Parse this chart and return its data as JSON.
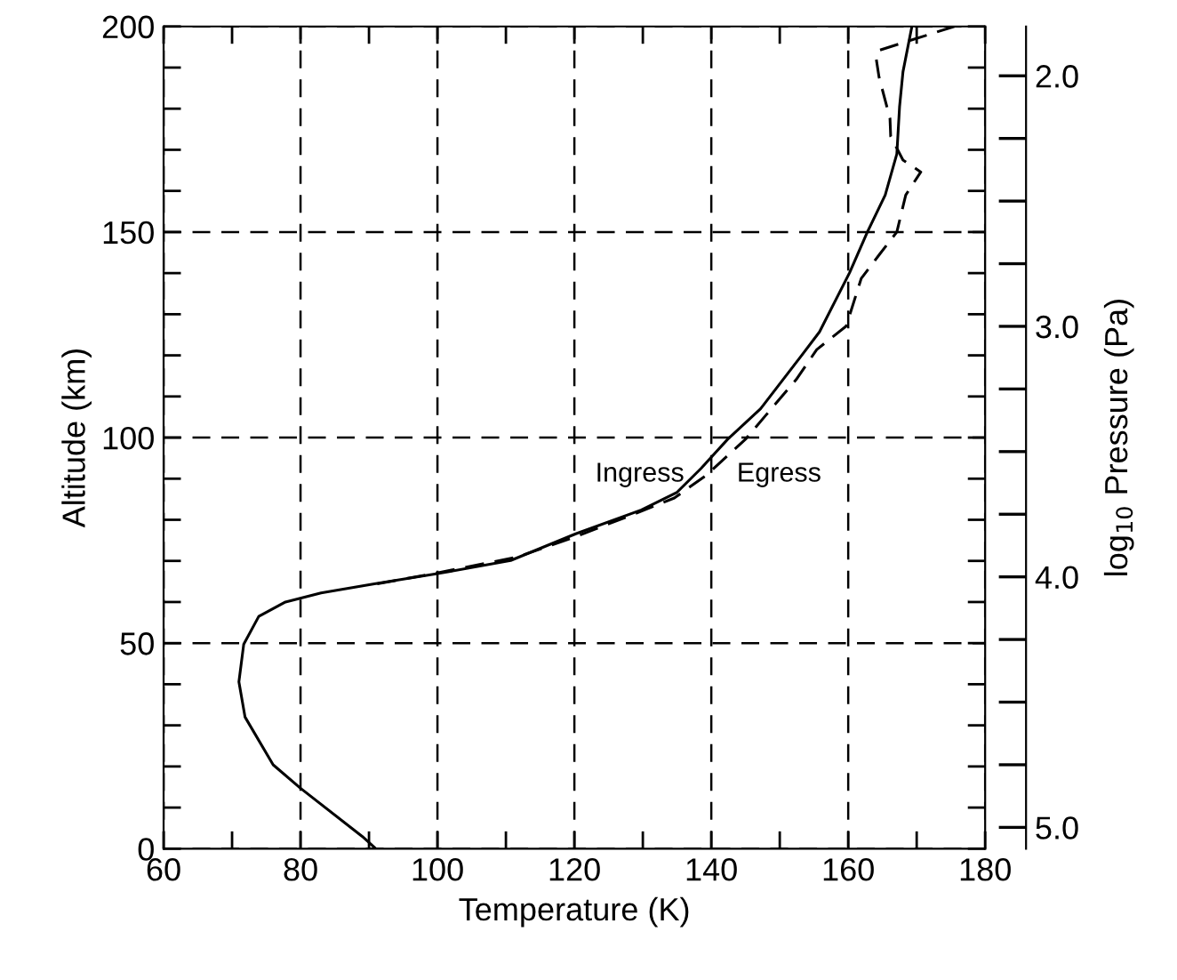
{
  "chart_data": {
    "type": "line",
    "xlabel": "Temperature (K)",
    "ylabel": "Altitude (km)",
    "y2label": "log$_{10}$ Pressure (Pa)",
    "series": [
      {
        "color": "#000000",
        "line_style": "solid",
        "x": [
          91,
          89.0,
          80,
          76,
          71.9,
          71.0,
          71.7,
          73.9,
          77.8,
          83,
          90.8,
          100,
          110.7,
          120.2,
          129.8,
          135,
          138.5,
          142.4,
          147.2,
          153.2,
          155.8,
          160.2,
          162.8,
          165.4,
          167.1,
          167.5,
          168,
          169.3
        ],
        "values": [
          0,
          3,
          14.7,
          20.4,
          32,
          40.6,
          49.7,
          56.5,
          60,
          62.2,
          64.4,
          66.9,
          70.1,
          76.6,
          82.4,
          86.7,
          92.5,
          99.6,
          107,
          120,
          125.7,
          140.1,
          150,
          159,
          169,
          180.5,
          189,
          200
        ]
      },
      {
        "color": "#000000",
        "line_style": "dashed",
        "x": [
          91.2,
          100.3,
          111.6,
          120.2,
          128.1,
          134.6,
          139.4,
          145,
          148,
          152.4,
          155.4,
          159.7,
          161.9,
          164.5,
          167.1,
          168.4,
          170.6,
          168,
          166.2,
          166.1,
          164.5,
          164.1,
          164.5,
          175.5
        ],
        "values": [
          64.4,
          67.2,
          70.9,
          75.9,
          81,
          85.3,
          91,
          99.6,
          105.5,
          114.1,
          121.4,
          127.1,
          138.7,
          144.4,
          150,
          159,
          164.6,
          167.5,
          173.3,
          177.6,
          187.7,
          192,
          194.2,
          200
        ]
      }
    ],
    "annotations": [
      {
        "text": "Ingress",
        "x": 137.5,
        "y": 91
      },
      {
        "text": "Egress",
        "x": 139.4,
        "y": 91
      }
    ],
    "xlim": [
      60,
      180
    ],
    "xticks": [
      60,
      {
        "value": 70,
        "label": null
      },
      80,
      {
        "value": 90,
        "label": null
      },
      100,
      {
        "value": 110,
        "label": null
      },
      120,
      {
        "value": 130,
        "label": null
      },
      140,
      {
        "value": 150,
        "label": null
      },
      160,
      {
        "value": 170,
        "label": null
      },
      180
    ],
    "ylim": [
      0,
      200
    ],
    "yticks": [
      0,
      {
        "value": 10,
        "label": null
      },
      {
        "value": 20,
        "label": null
      },
      {
        "value": 30,
        "label": null
      },
      {
        "value": 40,
        "label": null
      },
      50,
      {
        "value": 60,
        "label": null
      },
      {
        "value": 70,
        "label": null
      },
      {
        "value": 80,
        "label": null
      },
      {
        "value": 90,
        "label": null
      },
      100,
      {
        "value": 110,
        "label": null
      },
      {
        "value": 120,
        "label": null
      },
      {
        "value": 130,
        "label": null
      },
      {
        "value": 140,
        "label": null
      },
      150,
      {
        "value": 160,
        "label": null
      },
      {
        "value": 170,
        "label": null
      },
      {
        "value": 180,
        "label": null
      },
      {
        "value": 190,
        "label": null
      },
      200
    ],
    "y2lim": [
      5.085,
      1.803
    ],
    "y2ticks": [
      {
        "value": 2.0,
        "label": "2.0"
      },
      {
        "value": 2.25,
        "label": null
      },
      {
        "value": 2.5,
        "label": null
      },
      {
        "value": 2.75,
        "label": null
      },
      {
        "value": 3.0,
        "label": "3.0"
      },
      {
        "value": 3.25,
        "label": null
      },
      {
        "value": 3.5,
        "label": null
      },
      {
        "value": 3.75,
        "label": null
      },
      {
        "value": 4.0,
        "label": "4.0"
      },
      {
        "value": 4.25,
        "label": null
      },
      {
        "value": 4.5,
        "label": null
      },
      {
        "value": 4.75,
        "label": null
      },
      {
        "value": 5.0,
        "label": "5.0"
      }
    ],
    "grid": true,
    "legend": false
  }
}
